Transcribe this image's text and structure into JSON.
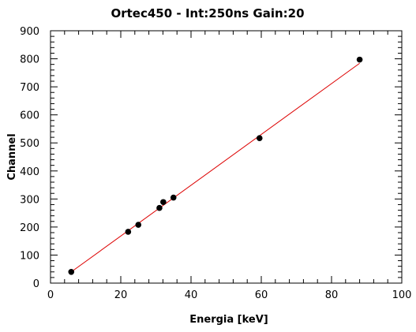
{
  "chart_data": {
    "type": "scatter",
    "title": "Ortec450 - Int:250ns Gain:20",
    "xlabel": "Energia [keV]",
    "ylabel": "Channel",
    "xlim": [
      0,
      100
    ],
    "ylim": [
      0,
      900
    ],
    "x_ticks": [
      0,
      20,
      40,
      60,
      80,
      100
    ],
    "y_ticks": [
      0,
      100,
      200,
      300,
      400,
      500,
      600,
      700,
      800,
      900
    ],
    "grid": false,
    "points": {
      "x": [
        5.9,
        22.1,
        25.0,
        31.0,
        32.1,
        35.0,
        59.5,
        88.0
      ],
      "y": [
        40,
        183,
        208,
        268,
        289,
        305,
        517,
        797
      ]
    },
    "fit_line": {
      "x": [
        5.9,
        88.0
      ],
      "y": [
        40,
        784
      ]
    },
    "colors": {
      "point": "#000000",
      "fit": "#dd0000",
      "axes": "#000000"
    }
  }
}
